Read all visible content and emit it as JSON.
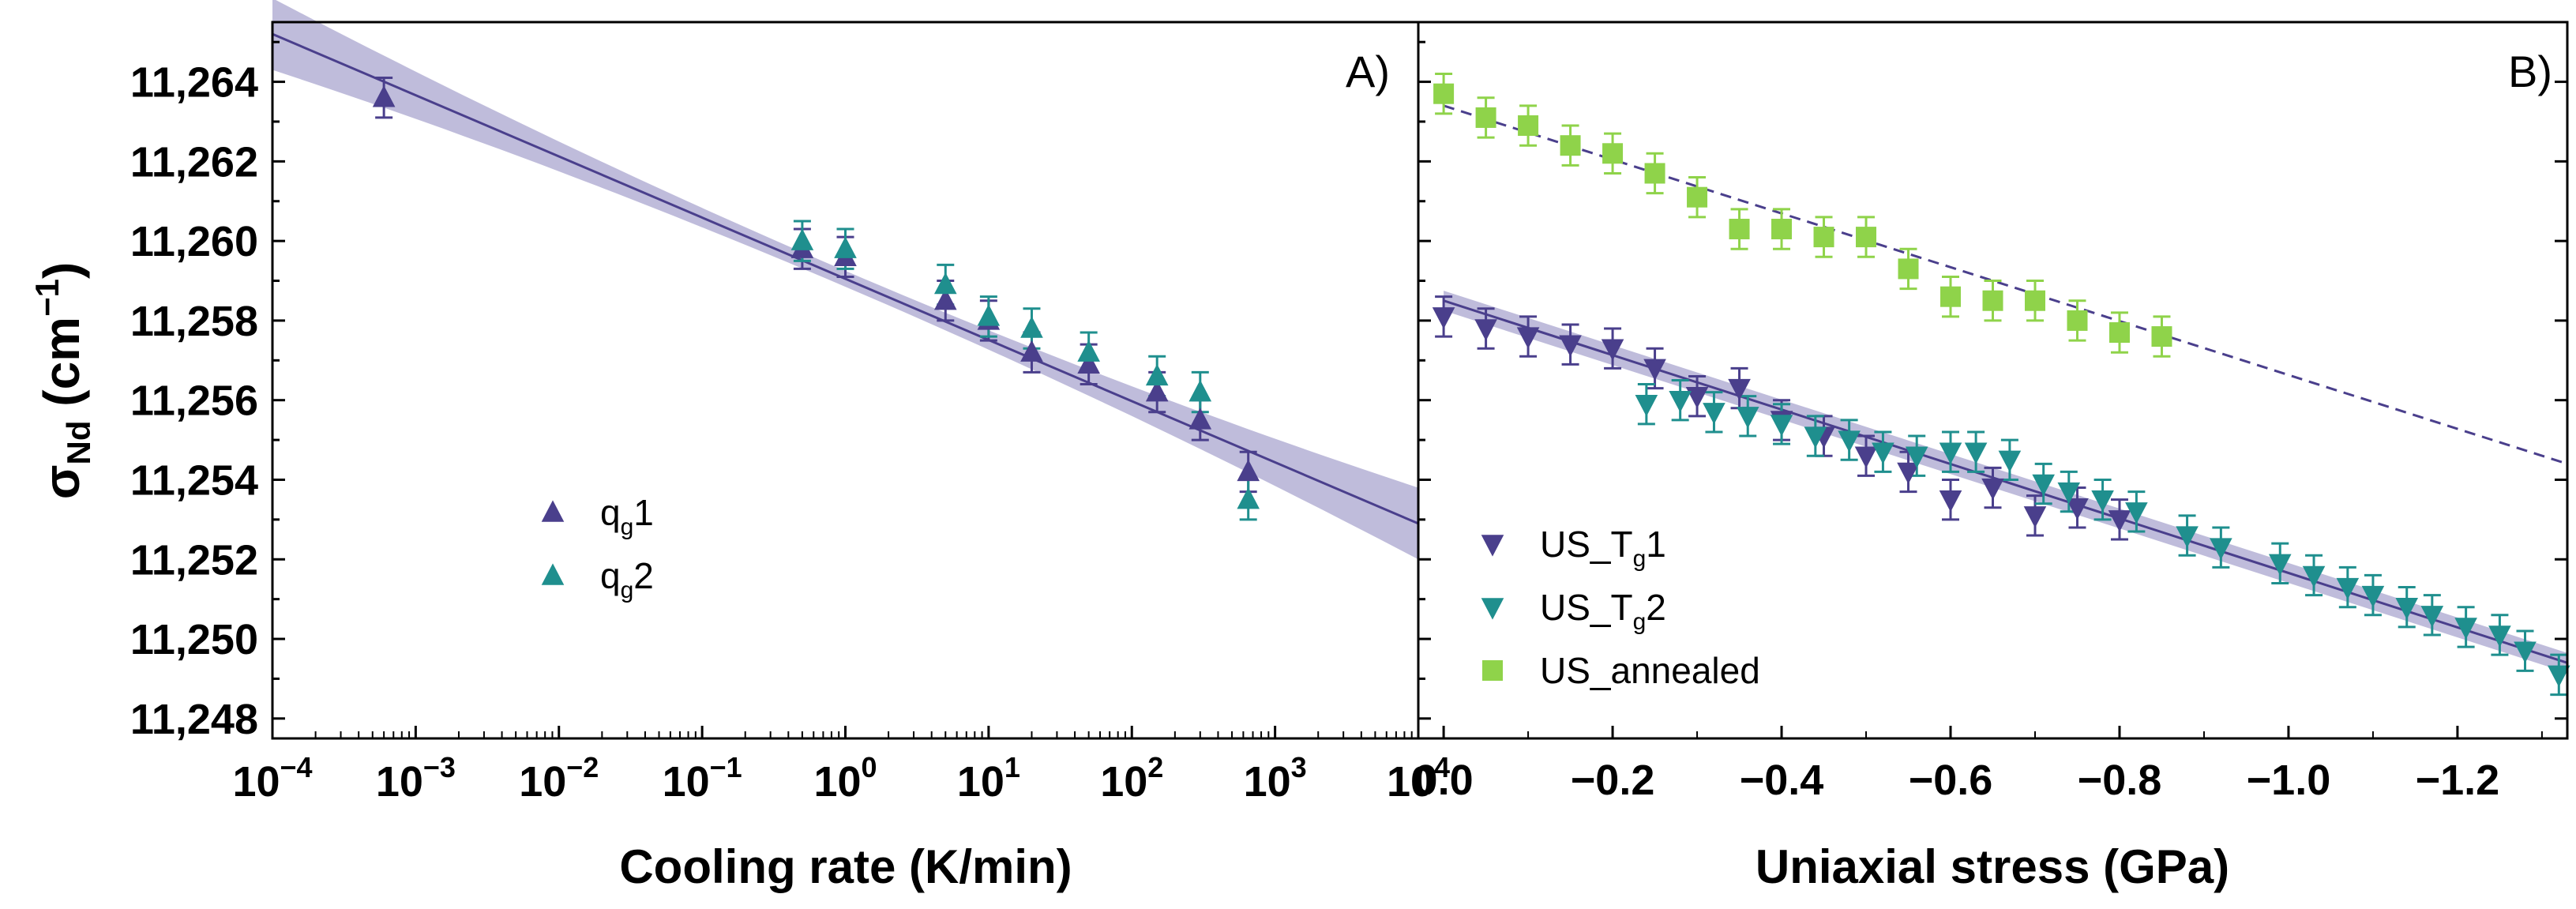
{
  "colors": {
    "purple": "#4a3f8c",
    "teal": "#1f8f8e",
    "green": "#8fd34a",
    "band": "#a9a6cf"
  },
  "chart_data": [
    {
      "type": "scatter",
      "panel_label": "A)",
      "xscale": "log",
      "xlim": [
        0.0001,
        10000
      ],
      "ylim": [
        11247.5,
        11265.5
      ],
      "xlabel": "Cooling rate (K/min)",
      "ylabel": "σNd (cm−1)",
      "ylabel_parts": {
        "sigma": "σ",
        "sub": "Nd",
        "unit_open": " (cm",
        "sup": "−1",
        "unit_close": ")"
      },
      "xticks": [
        {
          "value": 0.0001,
          "base": "10",
          "exp": "−4"
        },
        {
          "value": 0.001,
          "base": "10",
          "exp": "−3"
        },
        {
          "value": 0.01,
          "base": "10",
          "exp": "−2"
        },
        {
          "value": 0.1,
          "base": "10",
          "exp": "−1"
        },
        {
          "value": 1,
          "base": "10",
          "exp": "0"
        },
        {
          "value": 10,
          "base": "10",
          "exp": "1"
        },
        {
          "value": 100,
          "base": "10",
          "exp": "2"
        },
        {
          "value": 1000,
          "base": "10",
          "exp": "3"
        },
        {
          "value": 10000,
          "base": "10",
          "exp": "4"
        }
      ],
      "yticks": [
        {
          "value": 11248,
          "label": "11,248"
        },
        {
          "value": 11250,
          "label": "11,250"
        },
        {
          "value": 11252,
          "label": "11,252"
        },
        {
          "value": 11254,
          "label": "11,254"
        },
        {
          "value": 11256,
          "label": "11,256"
        },
        {
          "value": 11258,
          "label": "11,258"
        },
        {
          "value": 11260,
          "label": "11,260"
        },
        {
          "value": 11262,
          "label": "11,262"
        },
        {
          "value": 11264,
          "label": "11,264"
        }
      ],
      "fit": {
        "x0": 0.0001,
        "y0": 11265.2,
        "x1": 10000,
        "y1": 11252.9,
        "band_width_ends": 0.9,
        "band_width_mid": 0.2,
        "color": "purple"
      },
      "series": [
        {
          "name": "qg1",
          "legend_base": "q",
          "legend_sub": "g",
          "legend_tail": "1",
          "marker": "triangle-up",
          "color": "purple",
          "points": [
            {
              "x": 0.0006,
              "y": 11263.6,
              "err": 0.5
            },
            {
              "x": 0.5,
              "y": 11259.8,
              "err": 0.5
            },
            {
              "x": 1,
              "y": 11259.6,
              "err": 0.5
            },
            {
              "x": 5,
              "y": 11258.5,
              "err": 0.5
            },
            {
              "x": 10,
              "y": 11258.0,
              "err": 0.5
            },
            {
              "x": 20,
              "y": 11257.2,
              "err": 0.5
            },
            {
              "x": 50,
              "y": 11256.9,
              "err": 0.5
            },
            {
              "x": 150,
              "y": 11256.2,
              "err": 0.5
            },
            {
              "x": 300,
              "y": 11255.5,
              "err": 0.5
            },
            {
              "x": 650,
              "y": 11254.2,
              "err": 0.5
            }
          ]
        },
        {
          "name": "qg2",
          "legend_base": "q",
          "legend_sub": "g",
          "legend_tail": "2",
          "marker": "triangle-up",
          "color": "teal",
          "points": [
            {
              "x": 0.5,
              "y": 11260.0,
              "err": 0.5
            },
            {
              "x": 1,
              "y": 11259.8,
              "err": 0.5
            },
            {
              "x": 5,
              "y": 11258.9,
              "err": 0.5
            },
            {
              "x": 10,
              "y": 11258.1,
              "err": 0.5
            },
            {
              "x": 20,
              "y": 11257.8,
              "err": 0.5
            },
            {
              "x": 50,
              "y": 11257.2,
              "err": 0.5
            },
            {
              "x": 150,
              "y": 11256.6,
              "err": 0.5
            },
            {
              "x": 300,
              "y": 11256.2,
              "err": 0.5
            },
            {
              "x": 650,
              "y": 11253.5,
              "err": 0.5
            }
          ]
        }
      ]
    },
    {
      "type": "scatter",
      "panel_label": "B)",
      "xscale": "linear",
      "xlim": [
        0.03,
        -1.33
      ],
      "ylim": [
        11247.5,
        11265.5
      ],
      "xlabel": "Uniaxial stress (GPa)",
      "xticks": [
        {
          "value": 0.0,
          "label": "0.0"
        },
        {
          "value": -0.2,
          "label": "−0.2"
        },
        {
          "value": -0.4,
          "label": "−0.4"
        },
        {
          "value": -0.6,
          "label": "−0.6"
        },
        {
          "value": -0.8,
          "label": "−0.8"
        },
        {
          "value": -1.0,
          "label": "−1.0"
        },
        {
          "value": -1.2,
          "label": "−1.2"
        }
      ],
      "fits": [
        {
          "x0": 0.0,
          "y0": 11263.4,
          "x1": -1.33,
          "y1": 11254.4,
          "style": "dashed",
          "color": "purple"
        },
        {
          "x0": 0.0,
          "y0": 11258.5,
          "x1": -1.33,
          "y1": 11249.4,
          "style": "solid",
          "color": "purple",
          "band_width": 0.25
        }
      ],
      "series": [
        {
          "name": "US_Tg1",
          "legend_base": "US_T",
          "legend_sub": "g",
          "legend_tail": "1",
          "marker": "triangle-down",
          "color": "purple",
          "points": [
            {
              "x": 0.0,
              "y": 11258.1,
              "err": 0.5
            },
            {
              "x": -0.05,
              "y": 11257.8,
              "err": 0.5
            },
            {
              "x": -0.1,
              "y": 11257.6,
              "err": 0.5
            },
            {
              "x": -0.15,
              "y": 11257.4,
              "err": 0.5
            },
            {
              "x": -0.2,
              "y": 11257.3,
              "err": 0.5
            },
            {
              "x": -0.25,
              "y": 11256.8,
              "err": 0.5
            },
            {
              "x": -0.3,
              "y": 11256.1,
              "err": 0.5
            },
            {
              "x": -0.35,
              "y": 11256.3,
              "err": 0.5
            },
            {
              "x": -0.4,
              "y": 11255.5,
              "err": 0.5
            },
            {
              "x": -0.45,
              "y": 11255.1,
              "err": 0.5
            },
            {
              "x": -0.5,
              "y": 11254.6,
              "err": 0.5
            },
            {
              "x": -0.55,
              "y": 11254.2,
              "err": 0.5
            },
            {
              "x": -0.6,
              "y": 11253.5,
              "err": 0.5
            },
            {
              "x": -0.65,
              "y": 11253.8,
              "err": 0.5
            },
            {
              "x": -0.7,
              "y": 11253.1,
              "err": 0.5
            },
            {
              "x": -0.75,
              "y": 11253.3,
              "err": 0.5
            },
            {
              "x": -0.8,
              "y": 11253.0,
              "err": 0.5
            }
          ]
        },
        {
          "name": "US_Tg2",
          "legend_base": "US_T",
          "legend_sub": "g",
          "legend_tail": "2",
          "marker": "triangle-down",
          "color": "teal",
          "points": [
            {
              "x": -0.24,
              "y": 11255.9,
              "err": 0.5
            },
            {
              "x": -0.28,
              "y": 11256.0,
              "err": 0.5
            },
            {
              "x": -0.32,
              "y": 11255.7,
              "err": 0.5
            },
            {
              "x": -0.36,
              "y": 11255.6,
              "err": 0.5
            },
            {
              "x": -0.4,
              "y": 11255.4,
              "err": 0.5
            },
            {
              "x": -0.44,
              "y": 11255.1,
              "err": 0.5
            },
            {
              "x": -0.48,
              "y": 11255.0,
              "err": 0.5
            },
            {
              "x": -0.52,
              "y": 11254.7,
              "err": 0.5
            },
            {
              "x": -0.56,
              "y": 11254.6,
              "err": 0.5
            },
            {
              "x": -0.6,
              "y": 11254.7,
              "err": 0.5
            },
            {
              "x": -0.63,
              "y": 11254.7,
              "err": 0.5
            },
            {
              "x": -0.67,
              "y": 11254.5,
              "err": 0.5
            },
            {
              "x": -0.71,
              "y": 11253.9,
              "err": 0.5
            },
            {
              "x": -0.74,
              "y": 11253.7,
              "err": 0.5
            },
            {
              "x": -0.78,
              "y": 11253.5,
              "err": 0.5
            },
            {
              "x": -0.82,
              "y": 11253.2,
              "err": 0.5
            },
            {
              "x": -0.88,
              "y": 11252.6,
              "err": 0.5
            },
            {
              "x": -0.92,
              "y": 11252.3,
              "err": 0.5
            },
            {
              "x": -0.99,
              "y": 11251.9,
              "err": 0.5
            },
            {
              "x": -1.03,
              "y": 11251.6,
              "err": 0.5
            },
            {
              "x": -1.07,
              "y": 11251.3,
              "err": 0.5
            },
            {
              "x": -1.1,
              "y": 11251.1,
              "err": 0.5
            },
            {
              "x": -1.14,
              "y": 11250.8,
              "err": 0.5
            },
            {
              "x": -1.17,
              "y": 11250.6,
              "err": 0.5
            },
            {
              "x": -1.21,
              "y": 11250.3,
              "err": 0.5
            },
            {
              "x": -1.25,
              "y": 11250.1,
              "err": 0.5
            },
            {
              "x": -1.28,
              "y": 11249.7,
              "err": 0.5
            },
            {
              "x": -1.32,
              "y": 11249.1,
              "err": 0.5
            }
          ]
        },
        {
          "name": "US_annealed",
          "legend_base": "US_annealed",
          "legend_sub": "",
          "legend_tail": "",
          "marker": "square",
          "color": "green",
          "points": [
            {
              "x": 0.0,
              "y": 11263.7,
              "err": 0.5
            },
            {
              "x": -0.05,
              "y": 11263.1,
              "err": 0.5
            },
            {
              "x": -0.1,
              "y": 11262.9,
              "err": 0.5
            },
            {
              "x": -0.15,
              "y": 11262.4,
              "err": 0.5
            },
            {
              "x": -0.2,
              "y": 11262.2,
              "err": 0.5
            },
            {
              "x": -0.25,
              "y": 11261.7,
              "err": 0.5
            },
            {
              "x": -0.3,
              "y": 11261.1,
              "err": 0.5
            },
            {
              "x": -0.35,
              "y": 11260.3,
              "err": 0.5
            },
            {
              "x": -0.4,
              "y": 11260.3,
              "err": 0.5
            },
            {
              "x": -0.45,
              "y": 11260.1,
              "err": 0.5
            },
            {
              "x": -0.5,
              "y": 11260.1,
              "err": 0.5
            },
            {
              "x": -0.55,
              "y": 11259.3,
              "err": 0.5
            },
            {
              "x": -0.6,
              "y": 11258.6,
              "err": 0.5
            },
            {
              "x": -0.65,
              "y": 11258.5,
              "err": 0.5
            },
            {
              "x": -0.7,
              "y": 11258.5,
              "err": 0.5
            },
            {
              "x": -0.75,
              "y": 11258.0,
              "err": 0.5
            },
            {
              "x": -0.8,
              "y": 11257.7,
              "err": 0.5
            },
            {
              "x": -0.85,
              "y": 11257.6,
              "err": 0.5
            }
          ]
        }
      ]
    }
  ]
}
